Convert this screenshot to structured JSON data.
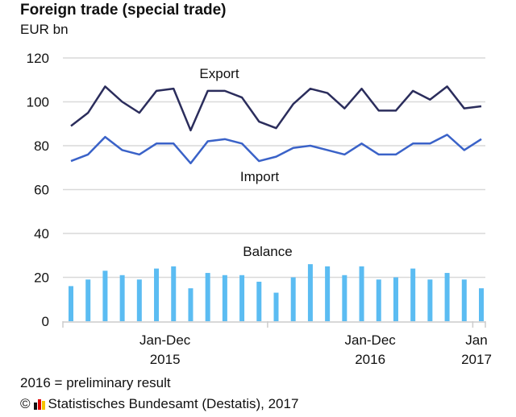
{
  "chart_data": {
    "type": "line",
    "title": "Foreign trade (special trade)",
    "ylabel": "EUR bn",
    "ylim": [
      0,
      120
    ],
    "yticks": [
      0,
      20,
      40,
      60,
      80,
      100,
      120
    ],
    "grid": true,
    "x": [
      "2015-01",
      "2015-02",
      "2015-03",
      "2015-04",
      "2015-05",
      "2015-06",
      "2015-07",
      "2015-08",
      "2015-09",
      "2015-10",
      "2015-11",
      "2015-12",
      "2016-01",
      "2016-02",
      "2016-03",
      "2016-04",
      "2016-05",
      "2016-06",
      "2016-07",
      "2016-08",
      "2016-09",
      "2016-10",
      "2016-11",
      "2016-12",
      "2017-01"
    ],
    "xtick_groups": [
      {
        "label1": "Jan-Dec",
        "label2": "2015",
        "from": 0,
        "to": 11
      },
      {
        "label1": "Jan-Dec",
        "label2": "2016",
        "from": 12,
        "to": 23
      },
      {
        "label1": "Jan",
        "label2": "2017",
        "from": 24,
        "to": 24
      }
    ],
    "series": [
      {
        "name": "Export",
        "type": "line",
        "color": "#2b2d5c",
        "values": [
          89,
          95,
          107,
          100,
          95,
          105,
          106,
          87,
          105,
          105,
          102,
          91,
          88,
          99,
          106,
          104,
          97,
          106,
          96,
          96,
          105,
          101,
          107,
          97,
          98
        ]
      },
      {
        "name": "Import",
        "type": "line",
        "color": "#3a62c8",
        "values": [
          73,
          76,
          84,
          78,
          76,
          81,
          81,
          72,
          82,
          83,
          81,
          73,
          75,
          79,
          80,
          78,
          76,
          81,
          76,
          76,
          81,
          81,
          85,
          78,
          83
        ]
      },
      {
        "name": "Balance",
        "type": "bar",
        "color": "#5bbcf2",
        "values": [
          16,
          19,
          23,
          21,
          19,
          24,
          25,
          15,
          22,
          21,
          21,
          18,
          13,
          20,
          26,
          25,
          21,
          25,
          19,
          20,
          24,
          19,
          22,
          19,
          15
        ]
      }
    ],
    "annotations": {
      "export": "Export",
      "import": "Import",
      "balance": "Balance"
    }
  },
  "footer": {
    "note": "2016 = preliminary result",
    "copyright": "©",
    "source": "Statistisches Bundesamt (Destatis), 2017"
  }
}
